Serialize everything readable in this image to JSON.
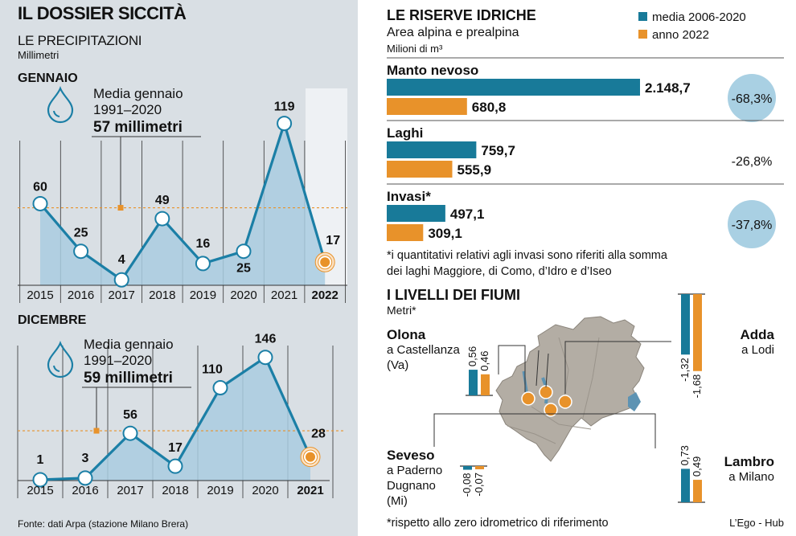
{
  "title": "IL DOSSIER SICCITÀ",
  "precipitation": {
    "heading": "LE PRECIPITAZIONI",
    "unit": "Millimetri",
    "source": "Fonte: dati Arpa (stazione Milano Brera)"
  },
  "colors": {
    "line": "#1b7fa6",
    "area": "#a9cde0",
    "avg_line": "#e8922a",
    "bar_avg": "#187a99",
    "bar_2022": "#e8922a",
    "pct_circle": "#a9d0e3",
    "map_land": "#b3ada4",
    "map_water": "#5d93b3",
    "panel_bg": "#d9dfe4"
  },
  "chart_data": [
    {
      "type": "line",
      "title": "GENNAIO",
      "x": [
        "2015",
        "2016",
        "2017",
        "2018",
        "2019",
        "2020",
        "2021",
        "2022"
      ],
      "values": [
        60,
        25,
        4,
        49,
        16,
        25,
        119,
        17
      ],
      "highlight": "2022",
      "average": {
        "value": 57,
        "label_lines": [
          "Media gennaio",
          "1991–2020",
          "57 millimetri"
        ]
      },
      "ylim": [
        0,
        130
      ],
      "icon": "water-drop-icon"
    },
    {
      "type": "line",
      "title": "DICEMBRE",
      "x": [
        "2015",
        "2016",
        "2017",
        "2018",
        "2019",
        "2020",
        "2021"
      ],
      "values": [
        1,
        3,
        56,
        17,
        110,
        146,
        28
      ],
      "highlight": "2021",
      "average": {
        "value": 59,
        "label_lines": [
          "Media gennaio",
          "1991–2020",
          "59 millimetri"
        ]
      },
      "ylim": [
        0,
        160
      ],
      "icon": "water-drop-icon"
    },
    {
      "type": "bar",
      "title": "LE RISERVE IDRICHE",
      "subtitle": "Area alpina e prealpina",
      "unit": "Milioni di m³",
      "legend": [
        {
          "name": "media 2006-2020",
          "color": "#187a99"
        },
        {
          "name": "anno 2022",
          "color": "#e8922a"
        }
      ],
      "categories": [
        {
          "name": "Manto nevoso",
          "media": 2148.7,
          "media_label": "2.148,7",
          "anno": 680.8,
          "anno_label": "680,8",
          "change": "-68,3%",
          "change_circle": true
        },
        {
          "name": "Laghi",
          "media": 759.7,
          "media_label": "759,7",
          "anno": 555.9,
          "anno_label": "555,9",
          "change": "-26,8%",
          "change_circle": false
        },
        {
          "name": "Invasi*",
          "media": 497.1,
          "media_label": "497,1",
          "anno": 309.1,
          "anno_label": "309,1",
          "change": "-37,8%",
          "change_circle": true
        }
      ],
      "note_lines": [
        "*i quantitativi relativi agli invasi sono riferiti alla somma",
        "dei laghi Maggiore, di Como, d’Idro e d’Iseo"
      ]
    },
    {
      "type": "bar",
      "title": "I LIVELLI DEI FIUMI",
      "unit": "Metri*",
      "note": "*rispetto allo zero idrometrico di riferimento",
      "credit": "L’Ego - Hub",
      "rivers": [
        {
          "name": "Olona",
          "place_lines": [
            "a Castellanza",
            "(Va)"
          ],
          "media": 0.56,
          "media_label": "0,56",
          "anno": 0.46,
          "anno_label": "0,46"
        },
        {
          "name": "Adda",
          "place_lines": [
            "a Lodi"
          ],
          "media": -1.32,
          "media_label": "-1,32",
          "anno": -1.68,
          "anno_label": "-1,68"
        },
        {
          "name": "Seveso",
          "place_lines": [
            "a Paderno",
            "Dugnano",
            "(Mi)"
          ],
          "media": -0.08,
          "media_label": "-0,08",
          "anno": -0.07,
          "anno_label": "-0,07"
        },
        {
          "name": "Lambro",
          "place_lines": [
            "a Milano"
          ],
          "media": 0.73,
          "media_label": "0,73",
          "anno": 0.49,
          "anno_label": "0,49"
        }
      ]
    }
  ]
}
